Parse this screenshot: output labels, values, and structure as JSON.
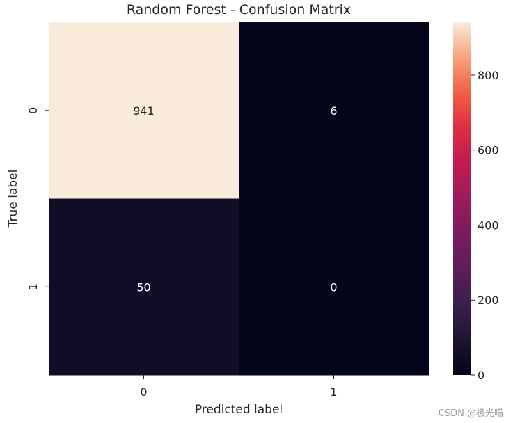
{
  "chart_data": {
    "type": "heatmap",
    "title": "Random Forest - Confusion Matrix",
    "xlabel": "Predicted label",
    "ylabel": "True label",
    "x_tick_labels": [
      "0",
      "1"
    ],
    "y_tick_labels": [
      "0",
      "1"
    ],
    "matrix": [
      [
        941,
        6
      ],
      [
        50,
        0
      ]
    ],
    "annotations": [
      [
        "941",
        "6"
      ],
      [
        "50",
        "0"
      ]
    ],
    "colorbar": {
      "min": 0,
      "max": 941,
      "ticks": [
        0,
        200,
        400,
        600,
        800
      ],
      "tick_labels": [
        "0",
        "200",
        "400",
        "600",
        "800"
      ],
      "colormap": "rocket"
    },
    "grid": false
  },
  "watermark": "CSDN @极光喵"
}
